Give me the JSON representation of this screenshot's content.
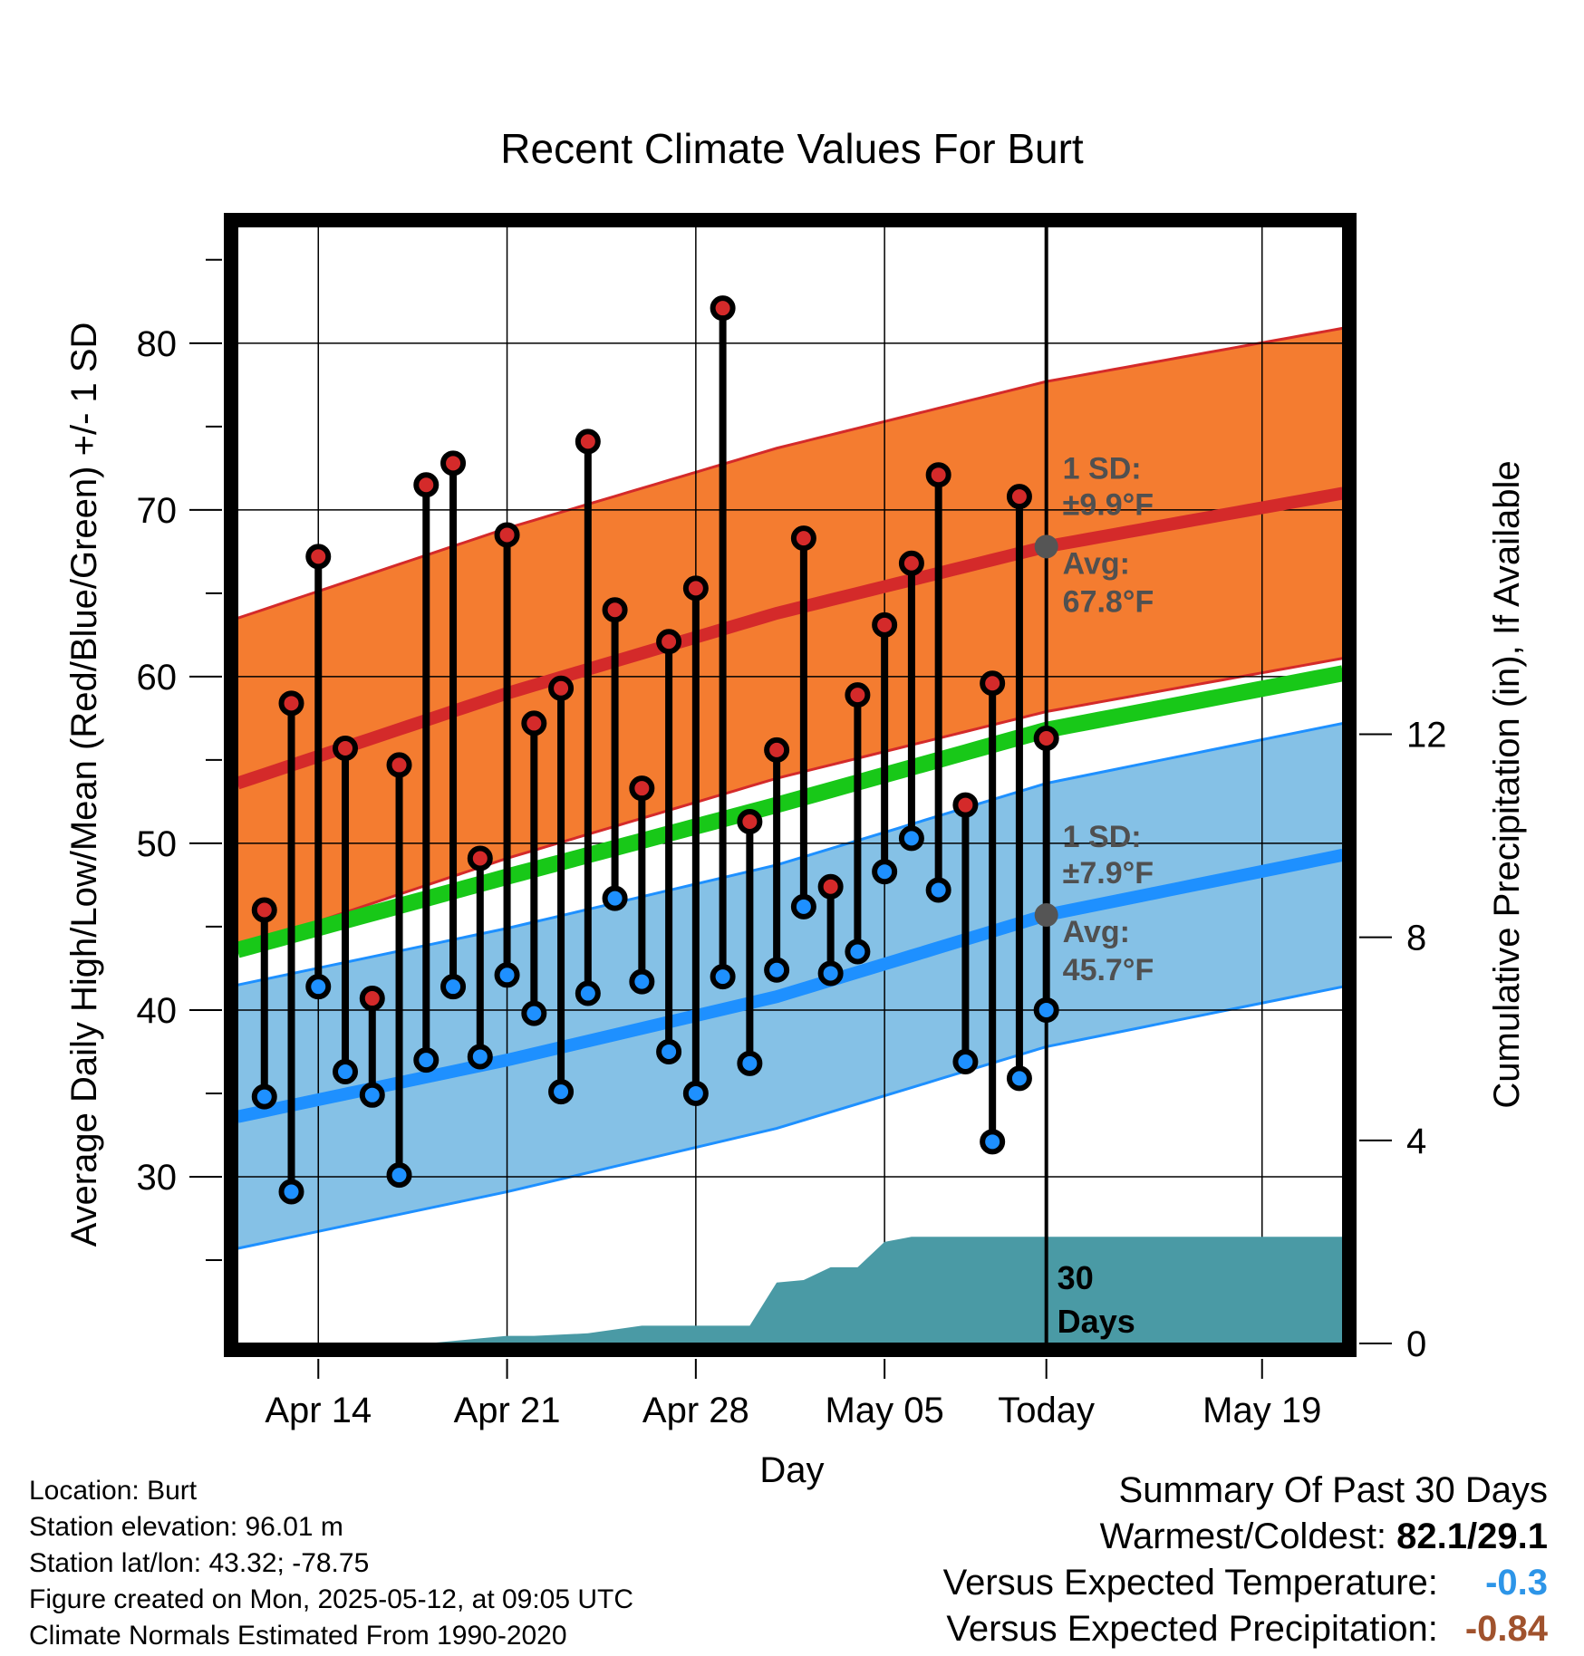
{
  "chart_data": {
    "type": "line",
    "title": "Recent Climate Values For Burt",
    "xlabel": "Day",
    "ylabel_left": "Average Daily High/Low/Mean (Red/Blue/Green) +/- 1 SD",
    "ylabel_right": "Cumulative Precipitation (in), If Available",
    "x_ticks": [
      "Apr 14",
      "Apr 21",
      "Apr 28",
      "May 05",
      "Today",
      "May 19"
    ],
    "x_range": [
      "Apr 11",
      "May 22"
    ],
    "ylim_left": [
      20,
      87
    ],
    "y_ticks_left": [
      "30",
      "40",
      "50",
      "60",
      "70",
      "80"
    ],
    "ylim_right": [
      0,
      22
    ],
    "y_ticks_right": [
      "0",
      "4",
      "8",
      "12"
    ],
    "grid": true,
    "dates": [
      "Apr 12",
      "Apr 13",
      "Apr 14",
      "Apr 15",
      "Apr 16",
      "Apr 17",
      "Apr 18",
      "Apr 19",
      "Apr 20",
      "Apr 21",
      "Apr 22",
      "Apr 23",
      "Apr 24",
      "Apr 25",
      "Apr 26",
      "Apr 27",
      "Apr 28",
      "Apr 29",
      "Apr 30",
      "May 01",
      "May 02",
      "May 03",
      "May 04",
      "May 05",
      "May 06",
      "May 07",
      "May 08",
      "May 09",
      "May 10",
      "May 11"
    ],
    "highs": [
      46.0,
      58.4,
      67.2,
      55.7,
      40.7,
      54.7,
      71.5,
      72.8,
      49.1,
      68.5,
      57.2,
      59.3,
      74.1,
      64.0,
      53.3,
      62.1,
      65.3,
      82.1,
      51.3,
      55.6,
      68.3,
      47.4,
      58.9,
      63.1,
      66.8,
      72.1,
      52.3,
      59.6,
      70.8,
      56.3
    ],
    "lows": [
      34.8,
      29.1,
      41.4,
      36.3,
      34.9,
      30.1,
      37.0,
      41.4,
      37.2,
      42.1,
      39.8,
      35.1,
      41.0,
      46.7,
      41.7,
      37.5,
      35.0,
      42.0,
      36.8,
      42.4,
      46.2,
      42.2,
      43.5,
      48.3,
      50.3,
      47.2,
      36.9,
      32.1,
      35.9,
      40.0
    ],
    "normal_high": {
      "x": [
        "Apr 11",
        "Apr 21",
        "May 01",
        "May 11",
        "May 22"
      ],
      "avg": [
        53.6,
        59.0,
        63.8,
        67.8,
        71.0
      ],
      "sd": 9.9
    },
    "normal_low": {
      "x": [
        "Apr 11",
        "Apr 21",
        "May 01",
        "May 11",
        "May 22"
      ],
      "avg": [
        33.6,
        37.0,
        40.8,
        45.7,
        49.3
      ],
      "sd": 7.9
    },
    "normal_mean": {
      "x": [
        "Apr 11",
        "Apr 21",
        "May 01",
        "May 11",
        "May 22"
      ],
      "avg": [
        43.6,
        48.0,
        52.3,
        56.8,
        60.2
      ]
    },
    "precip": {
      "x": [
        "Apr 11",
        "Apr 18",
        "Apr 19",
        "Apr 20",
        "Apr 21",
        "Apr 22",
        "Apr 24",
        "Apr 26",
        "Apr 30",
        "May 01",
        "May 02",
        "May 03",
        "May 04",
        "May 05",
        "May 06",
        "May 22"
      ],
      "cum": [
        0.0,
        0.0,
        0.05,
        0.1,
        0.15,
        0.15,
        0.2,
        0.35,
        0.35,
        1.2,
        1.25,
        1.5,
        1.5,
        2.0,
        2.1,
        2.1
      ]
    },
    "annotations": {
      "high_sd_label": "1 SD:",
      "high_sd_value": "±9.9°F",
      "high_avg_label": "Avg:",
      "high_avg_value": "67.8°F",
      "low_sd_label": "1 SD:",
      "low_sd_value": "±7.9°F",
      "low_avg_label": "Avg:",
      "low_avg_value": "45.7°F",
      "period_label_1": "30",
      "period_label_2": "Days"
    },
    "colors": {
      "high_band": "#f47c30",
      "high_line": "#d42a2a",
      "low_band": "#85c1e6",
      "low_line": "#1e90ff",
      "mean_line": "#18c818",
      "precip": "#4a9aa5",
      "high_dot": "#d42a2a",
      "low_dot": "#1e90ff",
      "annotation_text": "#505050"
    }
  },
  "footer": {
    "location": "Location: Burt",
    "elevation": "Station elevation: 96.01 m",
    "latlon": "Station lat/lon: 43.32; -78.75",
    "created": "Figure created on Mon, 2025-05-12, at 09:05 UTC",
    "normals": "Climate Normals Estimated From 1990-2020"
  },
  "summary": {
    "heading": "Summary Of Past 30 Days",
    "warm_cold_label": "Warmest/Coldest:",
    "warm_cold_value": "82.1/29.1",
    "temp_label": "Versus Expected Temperature:",
    "temp_value": "-0.3",
    "temp_color": "#2d95e8",
    "precip_label": "Versus Expected Precipitation:",
    "precip_value": "-0.84",
    "precip_color": "#a0522d"
  }
}
